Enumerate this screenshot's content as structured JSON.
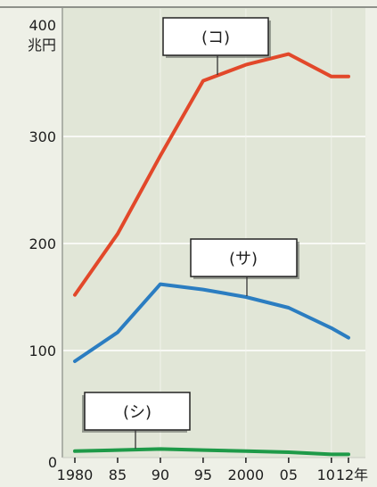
{
  "chart_data": {
    "type": "line",
    "title": "",
    "xlabel": "",
    "ylabel": "兆円",
    "x": [
      1980,
      1985,
      1990,
      1995,
      2000,
      2005,
      2010,
      2012
    ],
    "x_tick_labels": [
      "1980",
      "85",
      "90",
      "95",
      "2000",
      "05",
      "10",
      "12年"
    ],
    "y_ticks": [
      0,
      100,
      200,
      300,
      400
    ],
    "y_tick_labels": [
      "0",
      "100",
      "200",
      "300",
      "400"
    ],
    "xlim": [
      1980,
      2012
    ],
    "ylim": [
      0,
      400
    ],
    "grid": true,
    "series": [
      {
        "name": "(コ)",
        "color": "#e2482a",
        "values": [
          152,
          209,
          282,
          352,
          367,
          377,
          356,
          356
        ]
      },
      {
        "name": "(サ)",
        "color": "#2b7dc1",
        "values": [
          90,
          117,
          162,
          157,
          150,
          140,
          121,
          112
        ]
      },
      {
        "name": "(シ)",
        "color": "#1e9a48",
        "values": [
          6,
          7,
          8,
          7,
          6,
          5,
          3,
          3
        ]
      }
    ]
  }
}
